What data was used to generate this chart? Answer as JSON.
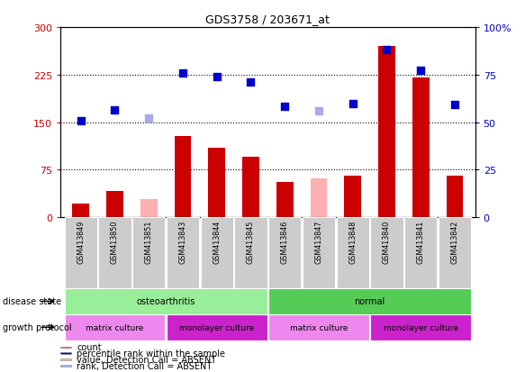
{
  "title": "GDS3758 / 203671_at",
  "samples": [
    "GSM413849",
    "GSM413850",
    "GSM413851",
    "GSM413843",
    "GSM413844",
    "GSM413845",
    "GSM413846",
    "GSM413847",
    "GSM413848",
    "GSM413840",
    "GSM413841",
    "GSM413842"
  ],
  "bar_values": [
    22,
    42,
    null,
    128,
    110,
    95,
    55,
    null,
    65,
    270,
    220,
    65
  ],
  "bar_absent": [
    null,
    null,
    28,
    null,
    null,
    null,
    null,
    62,
    null,
    null,
    null,
    null
  ],
  "dot_values": [
    152,
    170,
    null,
    228,
    222,
    213,
    175,
    null,
    180,
    265,
    232,
    178
  ],
  "dot_absent": [
    null,
    null,
    157,
    null,
    null,
    null,
    null,
    168,
    null,
    null,
    null,
    null
  ],
  "bar_color": "#cc0000",
  "bar_absent_color": "#ffb0b0",
  "dot_color": "#0000cc",
  "dot_absent_color": "#aaaaee",
  "left_ylim": [
    0,
    300
  ],
  "left_yticks": [
    0,
    75,
    150,
    225,
    300
  ],
  "right_ylim": [
    0,
    100
  ],
  "right_yticks": [
    0,
    25,
    50,
    75,
    100
  ],
  "dotted_lines": [
    75,
    150,
    225
  ],
  "disease_state_groups": [
    {
      "label": "osteoarthritis",
      "start": 0,
      "end": 5,
      "color": "#99ee99"
    },
    {
      "label": "normal",
      "start": 6,
      "end": 11,
      "color": "#55cc55"
    }
  ],
  "growth_protocol_groups": [
    {
      "label": "matrix culture",
      "start": 0,
      "end": 2,
      "color": "#ee88ee"
    },
    {
      "label": "monolayer culture",
      "start": 3,
      "end": 5,
      "color": "#cc22cc"
    },
    {
      "label": "matrix culture",
      "start": 6,
      "end": 8,
      "color": "#ee88ee"
    },
    {
      "label": "monolayer culture",
      "start": 9,
      "end": 11,
      "color": "#cc22cc"
    }
  ],
  "disease_label": "disease state",
  "protocol_label": "growth protocol",
  "legend_items": [
    {
      "label": "count",
      "color": "#cc0000"
    },
    {
      "label": "percentile rank within the sample",
      "color": "#0000cc"
    },
    {
      "label": "value, Detection Call = ABSENT",
      "color": "#ffb0b0"
    },
    {
      "label": "rank, Detection Call = ABSENT",
      "color": "#aaaaee"
    }
  ],
  "bg_color": "#ffffff",
  "xticklabel_bg": "#cccccc",
  "bar_width": 0.5,
  "dot_size": 30
}
